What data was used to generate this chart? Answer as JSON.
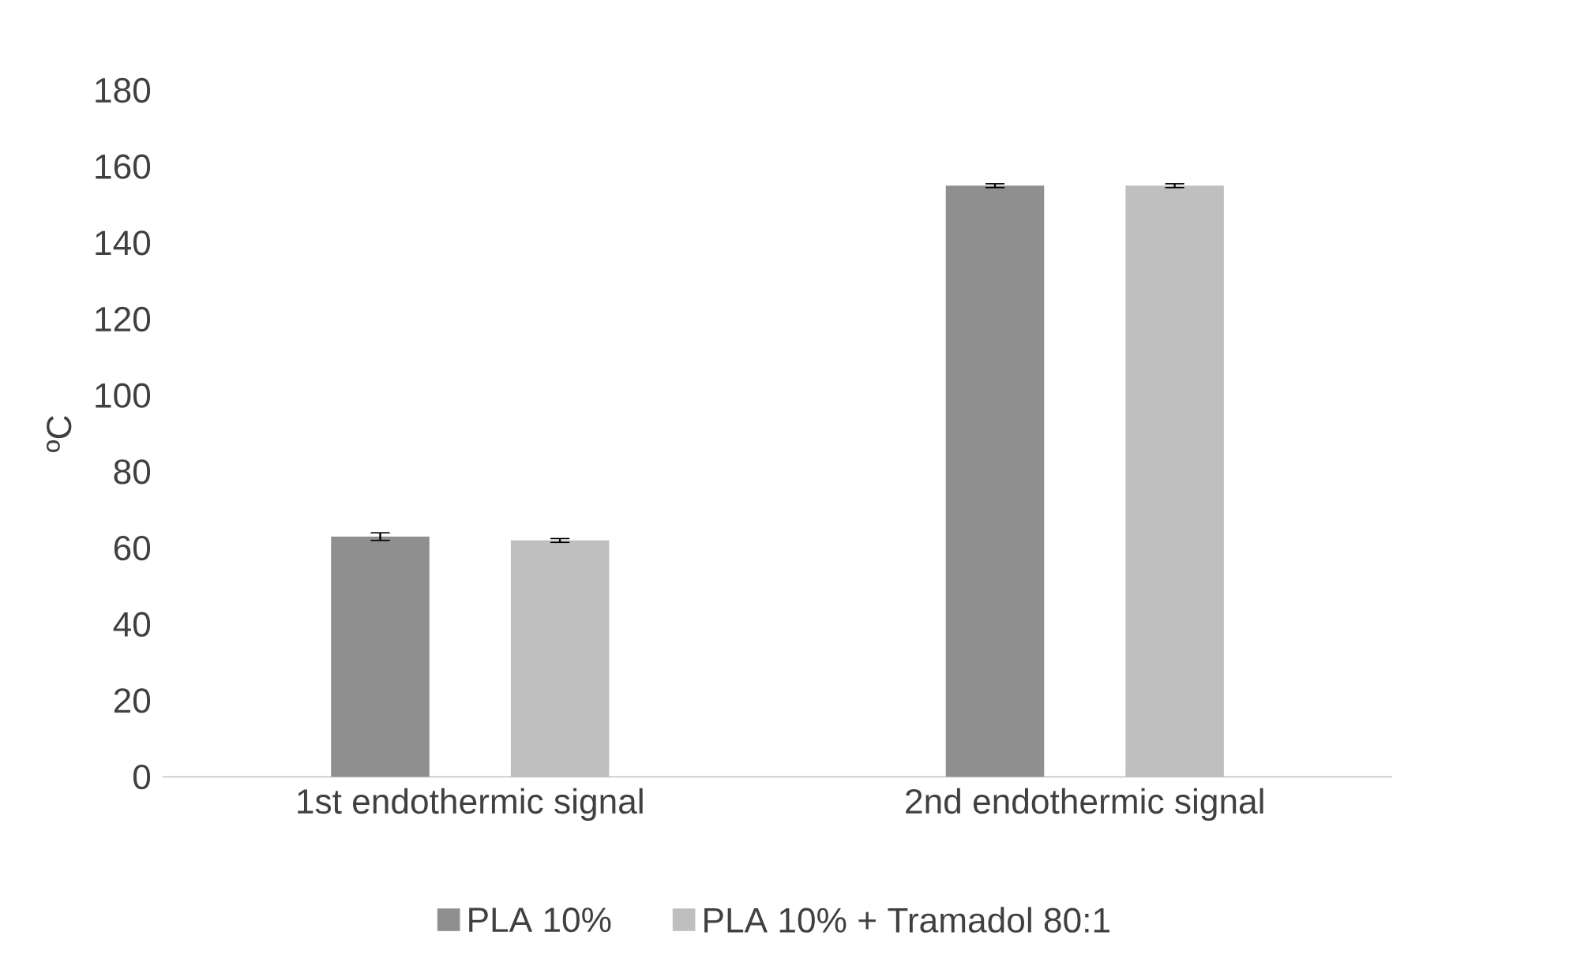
{
  "chart_data": {
    "type": "bar",
    "ylabel": "ºC",
    "categories": [
      "1st endothermic signal",
      "2nd endothermic signal"
    ],
    "series": [
      {
        "name": "PLA 10%",
        "color": "#8f8f8f",
        "values": [
          63,
          155
        ],
        "errors": [
          1,
          0.5
        ]
      },
      {
        "name": "PLA 10% + Tramadol 80:1",
        "color": "#bfbfbf",
        "values": [
          62,
          155
        ],
        "errors": [
          0.5,
          0.5
        ]
      }
    ],
    "ylim": [
      0,
      180
    ],
    "yticks": [
      0,
      20,
      40,
      60,
      80,
      100,
      120,
      140,
      160,
      180
    ],
    "legend": "bottom",
    "grid": false
  }
}
